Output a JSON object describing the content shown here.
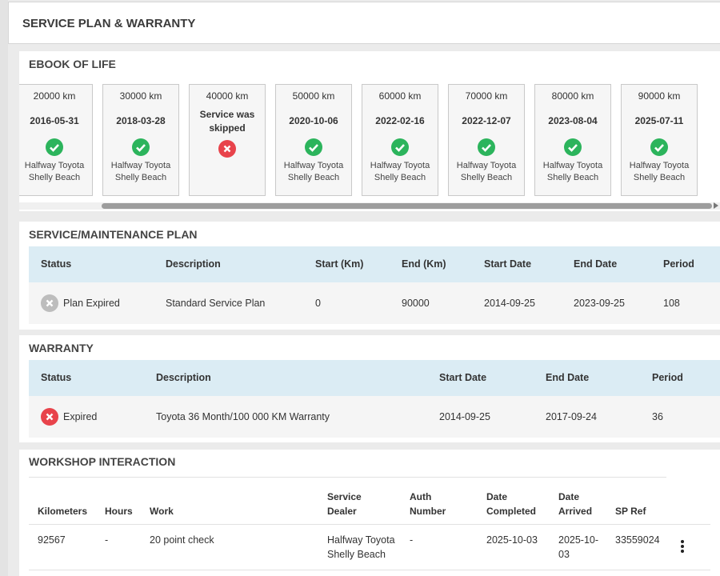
{
  "header": {
    "title": "SERVICE PLAN & WARRANTY"
  },
  "ebook": {
    "title": "EBOOK OF LIFE",
    "cards": [
      {
        "km": "20000 km",
        "date": "2016-05-31",
        "dealer": "Halfway Toyota Shelly Beach"
      },
      {
        "km": "30000 km",
        "date": "2018-03-28",
        "dealer": "Halfway Toyota Shelly Beach"
      },
      {
        "km": "40000 km",
        "note": "Service was skipped"
      },
      {
        "km": "50000 km",
        "date": "2020-10-06",
        "dealer": "Halfway Toyota Shelly Beach"
      },
      {
        "km": "60000 km",
        "date": "2022-02-16",
        "dealer": "Halfway Toyota Shelly Beach"
      },
      {
        "km": "70000 km",
        "date": "2022-12-07",
        "dealer": "Halfway Toyota Shelly Beach"
      },
      {
        "km": "80000 km",
        "date": "2023-08-04",
        "dealer": "Halfway Toyota Shelly Beach"
      },
      {
        "km": "90000 km",
        "date": "2025-07-11",
        "dealer": "Halfway Toyota Shelly Beach"
      }
    ]
  },
  "plan": {
    "title": "SERVICE/MAINTENANCE PLAN",
    "columns": [
      "Status",
      "Description",
      "Start (Km)",
      "End (Km)",
      "Start Date",
      "End Date",
      "Period"
    ],
    "rows": [
      [
        "Plan Expired",
        "Standard Service Plan",
        0,
        90000,
        "2014-09-25",
        "2023-09-25",
        108
      ]
    ]
  },
  "warranty": {
    "title": "WARRANTY",
    "columns": [
      "Status",
      "Description",
      "Start Date",
      "End Date",
      "Period"
    ],
    "rows": [
      [
        "Expired",
        "Toyota 36 Month/100 000 KM Warranty",
        "2014-09-25",
        "2017-09-24",
        36
      ]
    ]
  },
  "workshop": {
    "title": "WORKSHOP INTERACTION",
    "columns": [
      "Kilometers",
      "Hours",
      "Work",
      "Service Dealer",
      "Auth Number",
      "Date Completed",
      "Date Arrived",
      "SP Ref"
    ],
    "rows": [
      [
        92567,
        "-",
        "20 point check",
        "Halfway Toyota Shelly Beach",
        "-",
        "2025-10-03",
        "2025-10-03",
        33559024
      ]
    ]
  }
}
